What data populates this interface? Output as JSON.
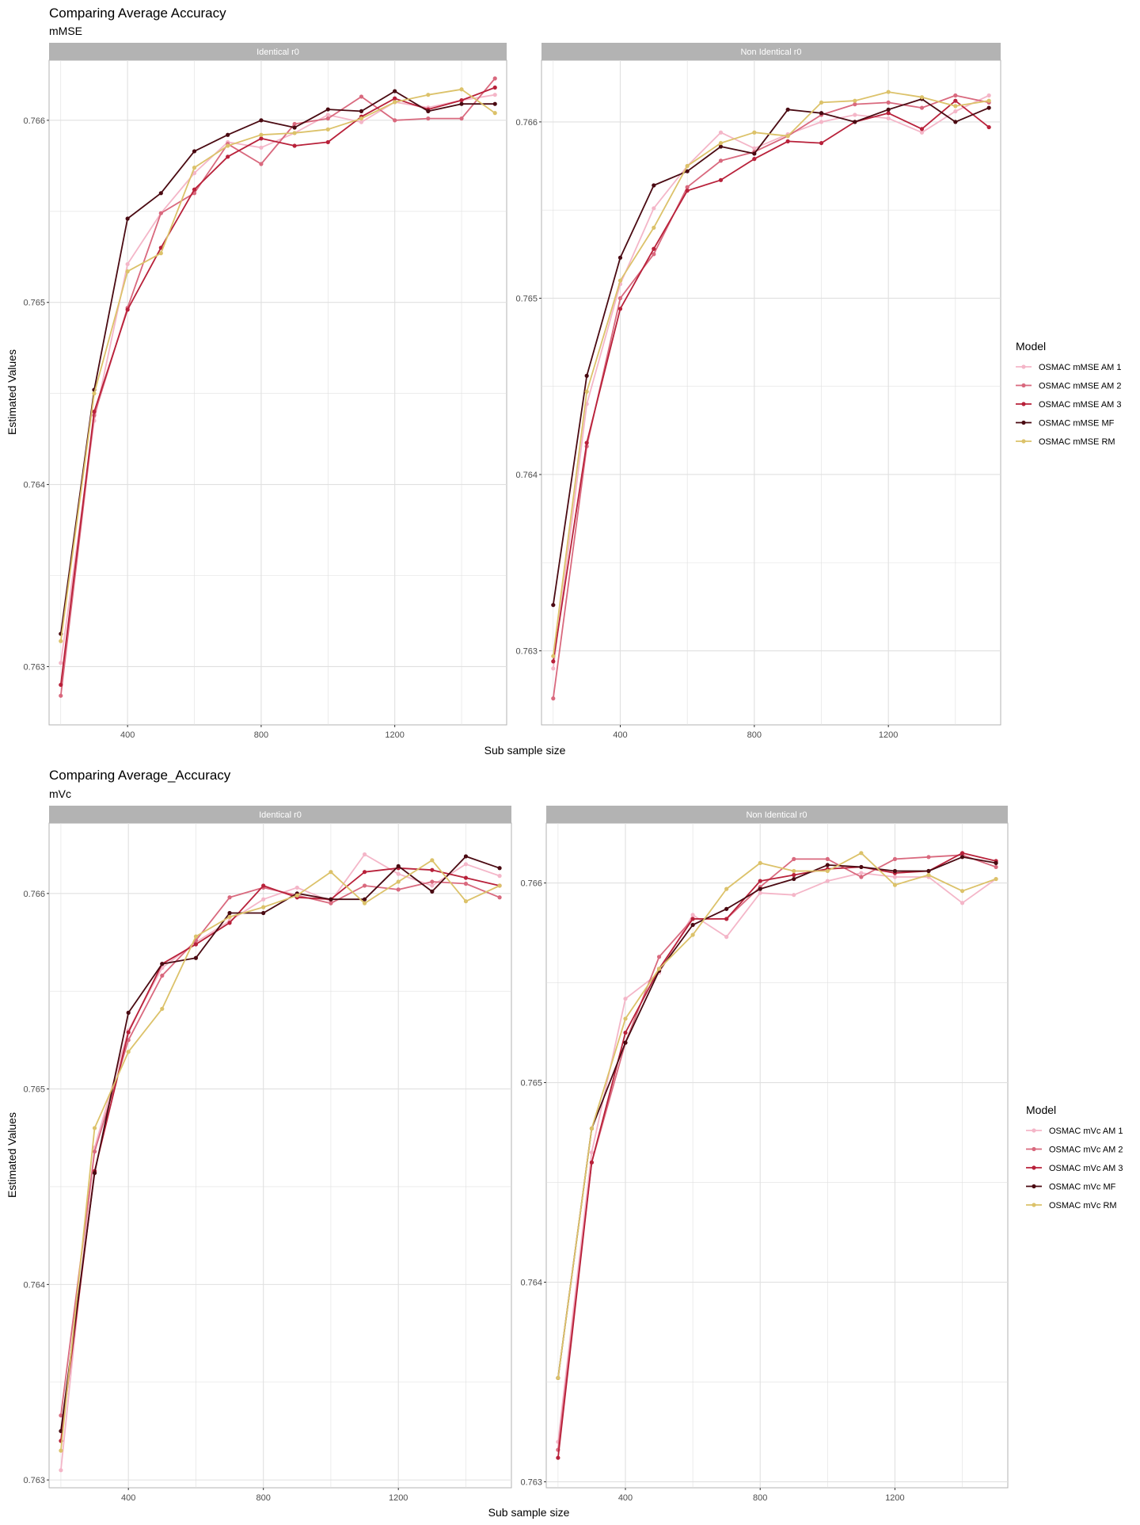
{
  "figures": [
    {
      "title": "Comparing Average Accuracy",
      "subtitle": "mMSE",
      "xlabel": "Sub sample size",
      "ylabel": "Estimated Values",
      "legend_title": "Model",
      "legend": [
        "OSMAC mMSE AM 1",
        "OSMAC mMSE AM 2",
        "OSMAC mMSE AM 3",
        "OSMAC mMSE MF",
        "OSMAC mMSE RM"
      ],
      "panels": [
        {
          "strip": "Identical r0"
        },
        {
          "strip": "Non Identical r0"
        }
      ]
    },
    {
      "title": "Comparing Average_Accuracy",
      "subtitle": "mVc",
      "xlabel": "Sub sample size",
      "ylabel": "Estimated Values",
      "legend_title": "Model",
      "legend": [
        "OSMAC mVc AM 1",
        "OSMAC mVc AM 2",
        "OSMAC mVc AM 3",
        "OSMAC mVc MF",
        "OSMAC mVc RM"
      ],
      "panels": [
        {
          "strip": "Identical r0"
        },
        {
          "strip": "Non Identical r0"
        }
      ]
    }
  ],
  "colors": {
    "AM1": "#f4b6c8",
    "AM2": "#d9697e",
    "AM3": "#b8213a",
    "MF": "#4a0a12",
    "RM": "#dcc26a",
    "strip_bg": "#b3b3b3",
    "grid": "#e0e0e0",
    "panel_border": "#b3b3b3"
  },
  "chart_data": [
    {
      "type": "line",
      "title": "Comparing Average Accuracy",
      "subtitle": "mMSE",
      "facet": "Identical r0",
      "xlabel": "Sub sample size",
      "ylabel": "Estimated Values",
      "xticks": [
        400,
        800,
        1200
      ],
      "yticks": [
        0.763,
        0.764,
        0.765,
        0.766
      ],
      "xlim": [
        165,
        1535
      ],
      "ylim": [
        0.76268,
        0.76633
      ],
      "x": [
        200,
        300,
        400,
        500,
        600,
        700,
        800,
        900,
        1000,
        1100,
        1200,
        1300,
        1400,
        1500
      ],
      "series": [
        {
          "name": "OSMAC mMSE AM 1",
          "color_key": "AM1",
          "values": [
            0.76302,
            0.76435,
            0.76521,
            0.76549,
            0.76571,
            0.76588,
            0.76585,
            0.76593,
            0.76603,
            0.76599,
            0.7661,
            0.76607,
            0.76611,
            0.76614
          ]
        },
        {
          "name": "OSMAC mMSE AM 2",
          "color_key": "AM2",
          "values": [
            0.76284,
            0.76438,
            0.76497,
            0.76549,
            0.7656,
            0.76587,
            0.76576,
            0.76598,
            0.76601,
            0.76613,
            0.766,
            0.76601,
            0.76601,
            0.76623
          ]
        },
        {
          "name": "OSMAC mMSE AM 3",
          "color_key": "AM3",
          "values": [
            0.7629,
            0.7644,
            0.76496,
            0.7653,
            0.76562,
            0.7658,
            0.7659,
            0.76586,
            0.76588,
            0.76602,
            0.76612,
            0.76606,
            0.76611,
            0.76618
          ]
        },
        {
          "name": "OSMAC mMSE MF",
          "color_key": "MF",
          "values": [
            0.76318,
            0.76452,
            0.76546,
            0.7656,
            0.76583,
            0.76592,
            0.766,
            0.76596,
            0.76606,
            0.76605,
            0.76616,
            0.76605,
            0.76609,
            0.76609
          ]
        },
        {
          "name": "OSMAC mMSE RM",
          "color_key": "RM",
          "values": [
            0.76314,
            0.7645,
            0.76517,
            0.76527,
            0.76574,
            0.76586,
            0.76592,
            0.76593,
            0.76595,
            0.76601,
            0.7661,
            0.76614,
            0.76617,
            0.76604
          ]
        }
      ]
    },
    {
      "type": "line",
      "title": "Comparing Average Accuracy",
      "subtitle": "mMSE",
      "facet": "Non Identical r0",
      "xlabel": "Sub sample size",
      "ylabel": "Estimated Values",
      "xticks": [
        400,
        800,
        1200
      ],
      "yticks": [
        0.763,
        0.764,
        0.765,
        0.766
      ],
      "xlim": [
        165,
        1535
      ],
      "ylim": [
        0.76258,
        0.76635
      ],
      "x": [
        200,
        300,
        400,
        500,
        600,
        700,
        800,
        900,
        1000,
        1100,
        1200,
        1300,
        1400,
        1500
      ],
      "series": [
        {
          "name": "OSMAC mMSE AM 1",
          "color_key": "AM1",
          "values": [
            0.7629,
            0.7644,
            0.76508,
            0.76551,
            0.76575,
            0.76594,
            0.76585,
            0.76593,
            0.766,
            0.76604,
            0.76602,
            0.76594,
            0.76606,
            0.76615
          ]
        },
        {
          "name": "OSMAC mMSE AM 2",
          "color_key": "AM2",
          "values": [
            0.76273,
            0.76416,
            0.765,
            0.76525,
            0.76563,
            0.76578,
            0.76583,
            0.76592,
            0.76604,
            0.7661,
            0.76611,
            0.76608,
            0.76615,
            0.76611
          ]
        },
        {
          "name": "OSMAC mMSE AM 3",
          "color_key": "AM3",
          "values": [
            0.76294,
            0.76418,
            0.76494,
            0.76528,
            0.76561,
            0.76567,
            0.76579,
            0.76589,
            0.76588,
            0.766,
            0.76605,
            0.76596,
            0.76612,
            0.76597
          ]
        },
        {
          "name": "OSMAC mMSE MF",
          "color_key": "MF",
          "values": [
            0.76326,
            0.76456,
            0.76523,
            0.76564,
            0.76572,
            0.76586,
            0.76582,
            0.76607,
            0.76605,
            0.766,
            0.76607,
            0.76613,
            0.766,
            0.76608
          ]
        },
        {
          "name": "OSMAC mMSE RM",
          "color_key": "RM",
          "values": [
            0.76297,
            0.76447,
            0.7651,
            0.7654,
            0.76575,
            0.76588,
            0.76594,
            0.76592,
            0.76611,
            0.76612,
            0.76617,
            0.76614,
            0.76609,
            0.76612
          ]
        }
      ]
    },
    {
      "type": "line",
      "title": "Comparing Average_Accuracy",
      "subtitle": "mVc",
      "facet": "Identical r0",
      "xlabel": "Sub sample size",
      "ylabel": "Estimated Values",
      "xticks": [
        400,
        800,
        1200
      ],
      "yticks": [
        0.763,
        0.764,
        0.765,
        0.766
      ],
      "xlim": [
        165,
        1535
      ],
      "ylim": [
        0.76296,
        0.76636
      ],
      "x": [
        200,
        300,
        400,
        500,
        600,
        700,
        800,
        900,
        1000,
        1100,
        1200,
        1300,
        1400,
        1500
      ],
      "series": [
        {
          "name": "OSMAC mVc AM 1",
          "color_key": "AM1",
          "values": [
            0.76305,
            0.7647,
            0.7653,
            0.76562,
            0.76575,
            0.76586,
            0.76597,
            0.76603,
            0.76596,
            0.7662,
            0.7661,
            0.76604,
            0.76615,
            0.76609
          ]
        },
        {
          "name": "OSMAC mVc AM 2",
          "color_key": "AM2",
          "values": [
            0.76333,
            0.76468,
            0.76525,
            0.76558,
            0.76576,
            0.76598,
            0.76603,
            0.76599,
            0.76595,
            0.76604,
            0.76602,
            0.76606,
            0.76605,
            0.76598
          ]
        },
        {
          "name": "OSMAC mVc AM 3",
          "color_key": "AM3",
          "values": [
            0.7632,
            0.76458,
            0.76529,
            0.76564,
            0.76574,
            0.76585,
            0.76604,
            0.76598,
            0.76597,
            0.76611,
            0.76613,
            0.76612,
            0.76608,
            0.76604
          ]
        },
        {
          "name": "OSMAC mVc MF",
          "color_key": "MF",
          "values": [
            0.76325,
            0.76457,
            0.76539,
            0.76564,
            0.76567,
            0.7659,
            0.7659,
            0.766,
            0.76597,
            0.76597,
            0.76614,
            0.76601,
            0.76619,
            0.76613
          ]
        },
        {
          "name": "OSMAC mVc RM",
          "color_key": "RM",
          "values": [
            0.76315,
            0.7648,
            0.76519,
            0.76541,
            0.76578,
            0.76588,
            0.76593,
            0.76599,
            0.76611,
            0.76595,
            0.76606,
            0.76617,
            0.76596,
            0.76604
          ]
        }
      ]
    },
    {
      "type": "line",
      "title": "Comparing Average_Accuracy",
      "subtitle": "mVc",
      "facet": "Non Identical r0",
      "xlabel": "Sub sample size",
      "ylabel": "Estimated Values",
      "xticks": [
        400,
        800,
        1200
      ],
      "yticks": [
        0.763,
        0.764,
        0.765,
        0.766
      ],
      "xlim": [
        165,
        1535
      ],
      "ylim": [
        0.76297,
        0.7663
      ],
      "x": [
        200,
        300,
        400,
        500,
        600,
        700,
        800,
        900,
        1000,
        1100,
        1200,
        1300,
        1400,
        1500
      ],
      "series": [
        {
          "name": "OSMAC mVc AM 1",
          "color_key": "AM1",
          "values": [
            0.7632,
            0.76465,
            0.76542,
            0.76555,
            0.76584,
            0.76573,
            0.76595,
            0.76594,
            0.76601,
            0.76605,
            0.76603,
            0.76603,
            0.7659,
            0.76602
          ]
        },
        {
          "name": "OSMAC mVc AM 2",
          "color_key": "AM2",
          "values": [
            0.76316,
            0.7646,
            0.7652,
            0.76563,
            0.76582,
            0.76582,
            0.76598,
            0.76612,
            0.76612,
            0.76603,
            0.76612,
            0.76613,
            0.76614,
            0.76608
          ]
        },
        {
          "name": "OSMAC mVc AM 3",
          "color_key": "AM3",
          "values": [
            0.76312,
            0.7646,
            0.76525,
            0.76557,
            0.76582,
            0.76582,
            0.76601,
            0.76604,
            0.76607,
            0.76608,
            0.76605,
            0.76606,
            0.76615,
            0.76611
          ]
        },
        {
          "name": "OSMAC mVc MF",
          "color_key": "MF",
          "values": [
            0.76352,
            0.76477,
            0.7652,
            0.76556,
            0.76579,
            0.76587,
            0.76597,
            0.76602,
            0.76609,
            0.76608,
            0.76606,
            0.76606,
            0.76613,
            0.7661
          ]
        },
        {
          "name": "OSMAC mVc RM",
          "color_key": "RM",
          "values": [
            0.76352,
            0.76477,
            0.76532,
            0.76557,
            0.76574,
            0.76597,
            0.7661,
            0.76606,
            0.76606,
            0.76615,
            0.76599,
            0.76604,
            0.76596,
            0.76602
          ]
        }
      ]
    }
  ]
}
